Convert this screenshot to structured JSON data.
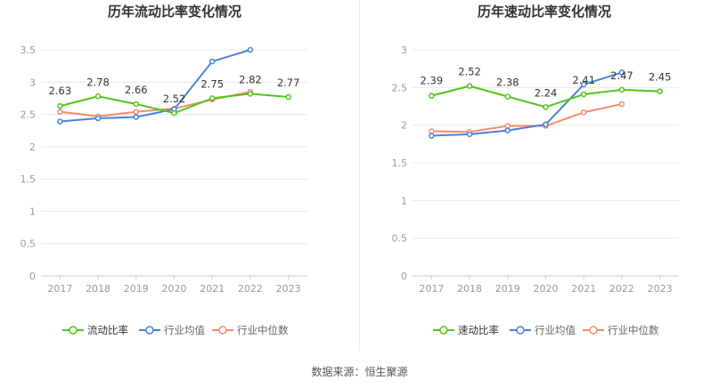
{
  "chart_data": [
    {
      "type": "line",
      "title": "历年流动比率变化情况",
      "categories": [
        "2017",
        "2018",
        "2019",
        "2020",
        "2021",
        "2022",
        "2023"
      ],
      "yticks": [
        "0",
        "0.5",
        "1",
        "1.5",
        "2",
        "2.5",
        "3",
        "3.5"
      ],
      "ylim": [
        0,
        3.5
      ],
      "grid": true,
      "legend_position": "bottom",
      "series": [
        {
          "name": "流动比率",
          "color": "#52c41a",
          "values": [
            2.63,
            2.78,
            2.66,
            2.52,
            2.75,
            2.82,
            2.77
          ],
          "labels": [
            "2.63",
            "2.78",
            "2.66",
            "2.52",
            "2.75",
            "2.82",
            "2.77"
          ]
        },
        {
          "name": "行业均值",
          "color": "#4a7fe0",
          "values": [
            2.39,
            2.44,
            2.46,
            2.58,
            3.32,
            3.5,
            null
          ],
          "labels": []
        },
        {
          "name": "行业中位数",
          "color": "#f28c6a",
          "values": [
            2.54,
            2.47,
            2.54,
            2.59,
            2.73,
            2.85,
            null
          ],
          "labels": []
        }
      ]
    },
    {
      "type": "line",
      "title": "历年速动比率变化情况",
      "categories": [
        "2017",
        "2018",
        "2019",
        "2020",
        "2021",
        "2022",
        "2023"
      ],
      "yticks": [
        "0",
        "0.5",
        "1",
        "1.5",
        "2",
        "2.5",
        "3"
      ],
      "ylim": [
        0,
        3
      ],
      "grid": true,
      "legend_position": "bottom",
      "series": [
        {
          "name": "速动比率",
          "color": "#52c41a",
          "values": [
            2.39,
            2.52,
            2.38,
            2.24,
            2.41,
            2.47,
            2.45
          ],
          "labels": [
            "2.39",
            "2.52",
            "2.38",
            "2.24",
            "2.41",
            "2.47",
            "2.45"
          ]
        },
        {
          "name": "行业均值",
          "color": "#4a7fe0",
          "values": [
            1.86,
            1.88,
            1.93,
            2.01,
            2.54,
            2.7,
            null
          ],
          "labels": []
        },
        {
          "name": "行业中位数",
          "color": "#f28c6a",
          "values": [
            1.92,
            1.91,
            1.99,
            1.99,
            2.17,
            2.28,
            null
          ],
          "labels": []
        }
      ]
    }
  ],
  "footer": {
    "source": "数据来源：恒生聚源"
  }
}
